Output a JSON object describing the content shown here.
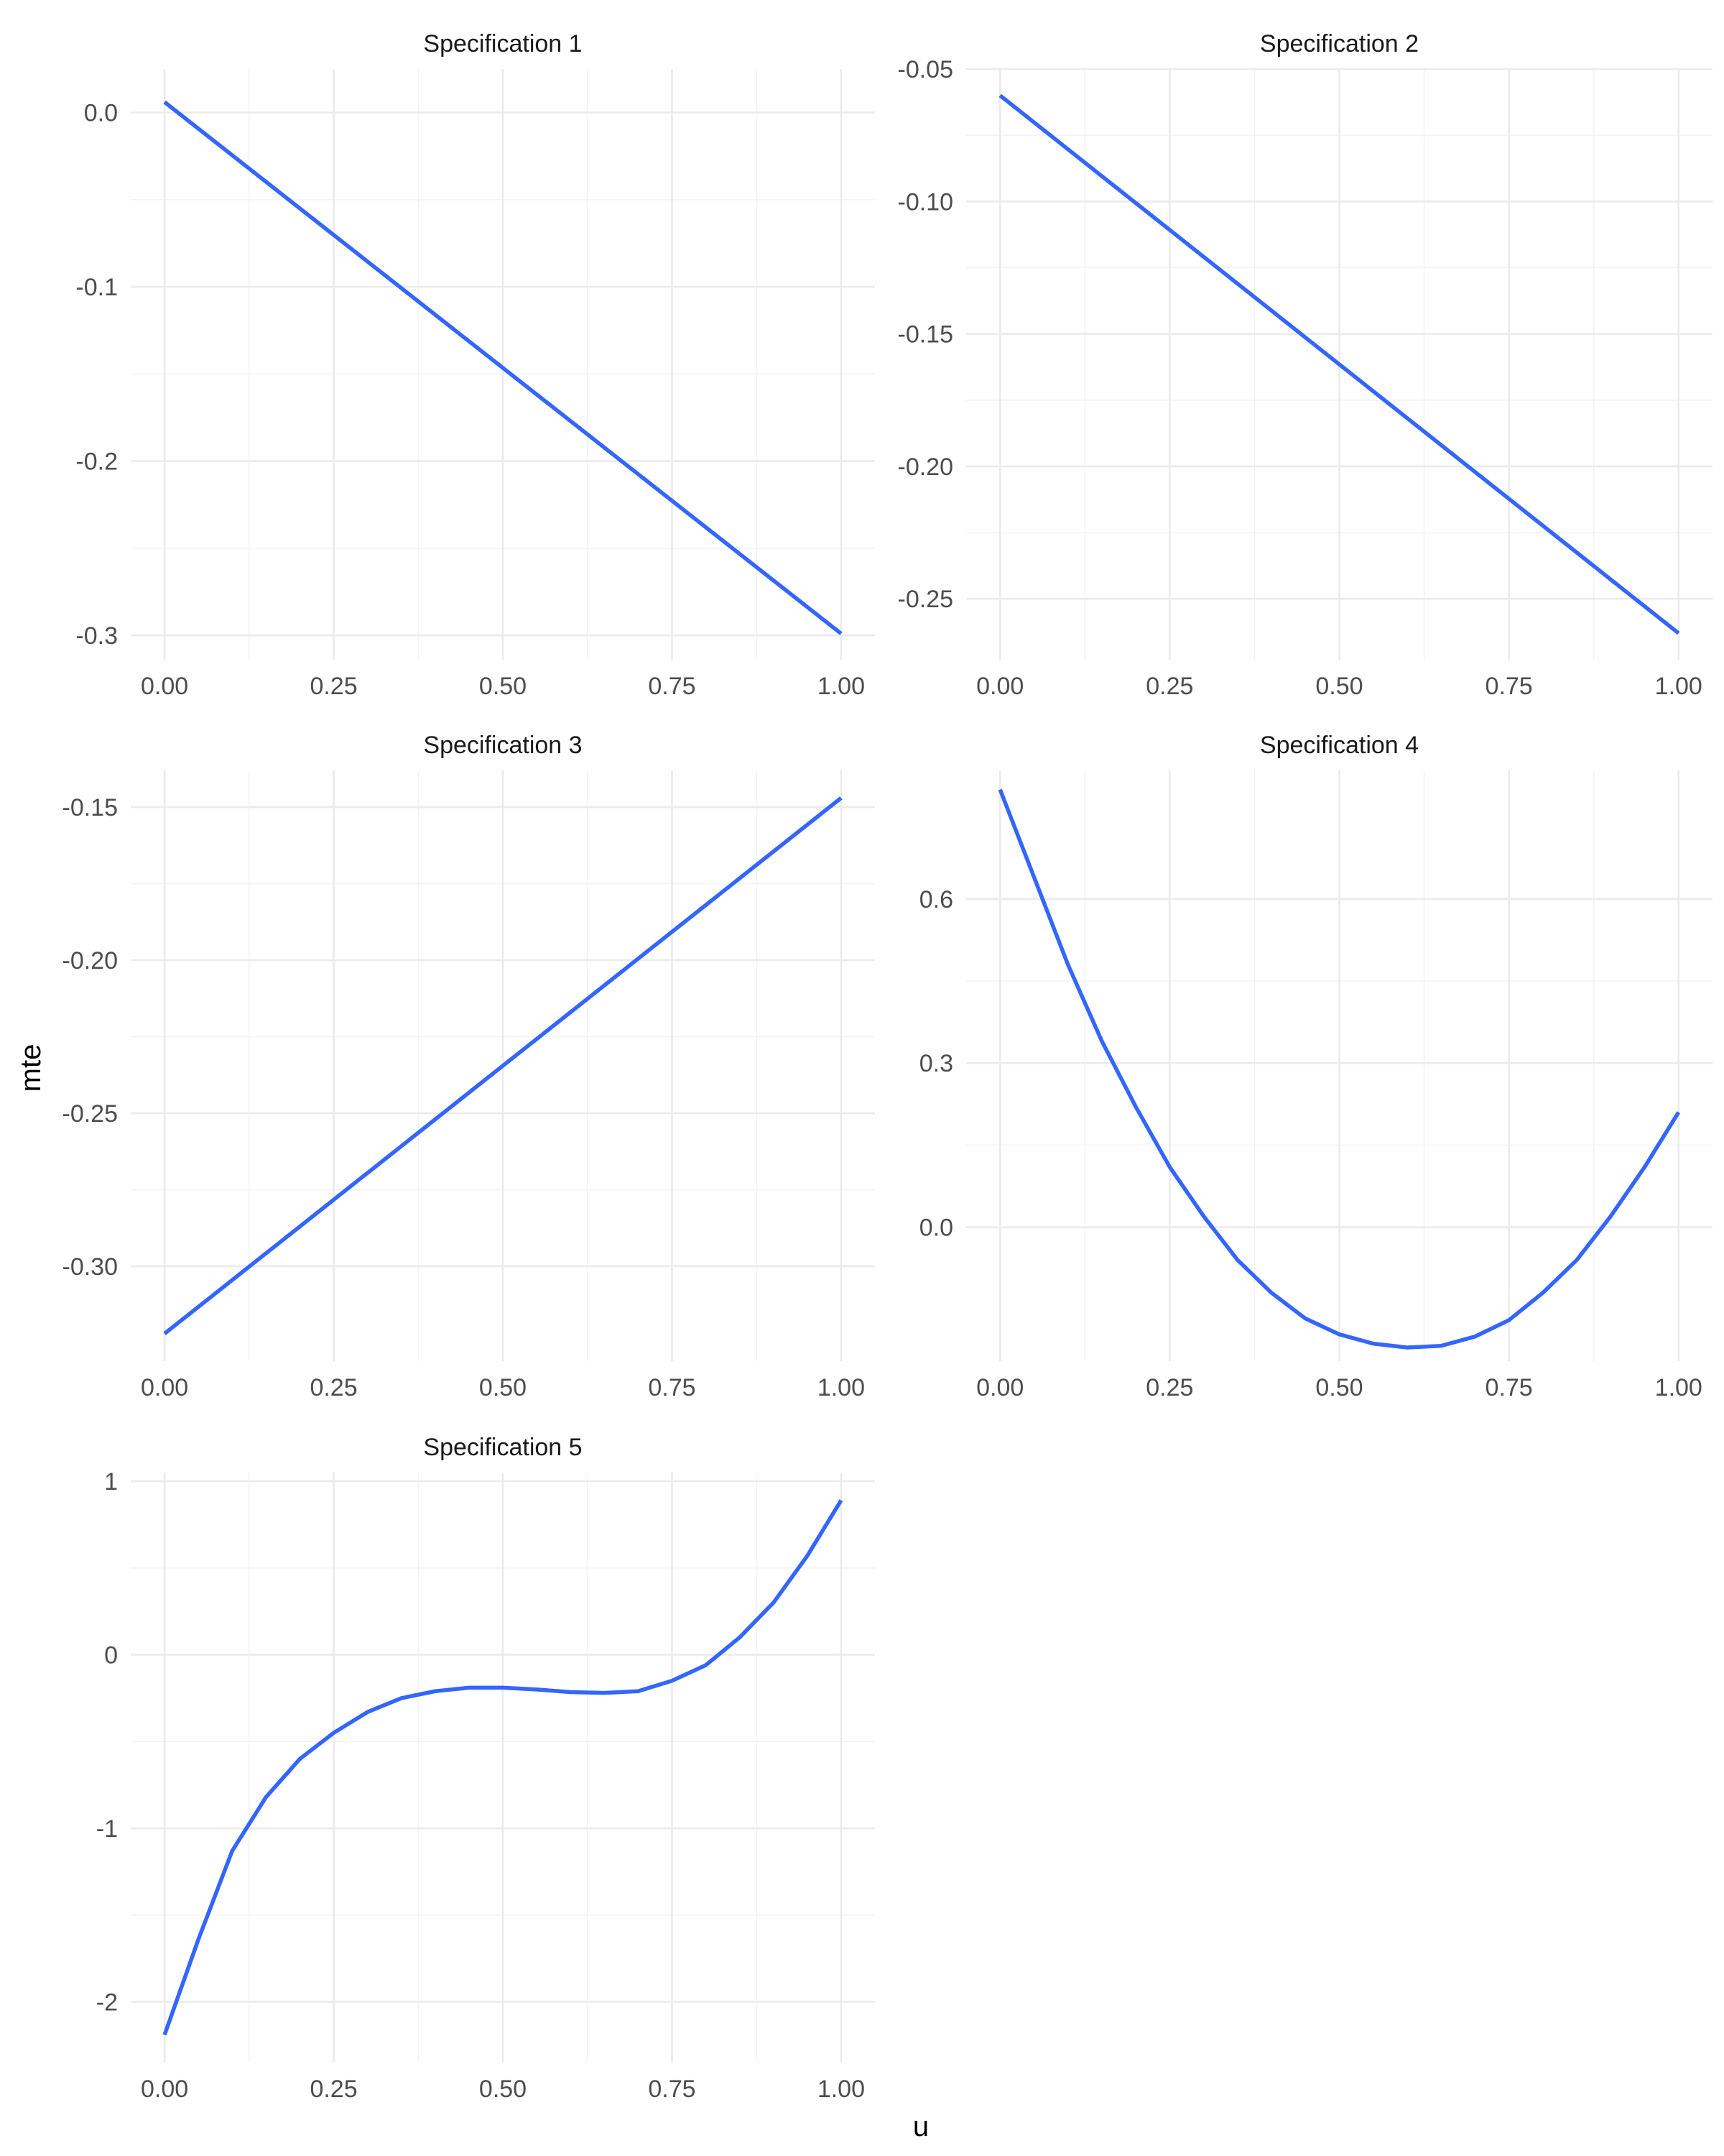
{
  "chart_data": {
    "type": "line",
    "xlabel": "u",
    "ylabel": "mte",
    "line_color": "#3366FF",
    "grid": true,
    "layout": "facet-wrap",
    "panels": [
      {
        "title": "Specification 1",
        "xlim": [
          -0.05,
          1.05
        ],
        "ylim": [
          -0.314,
          0.025
        ],
        "xticks": [
          0,
          0.25,
          0.5,
          0.75,
          1
        ],
        "xtick_labels": [
          "0.00",
          "0.25",
          "0.50",
          "0.75",
          "1.00"
        ],
        "yticks": [
          0,
          -0.1,
          -0.2,
          -0.3
        ],
        "ytick_labels": [
          "0.0",
          "-0.1",
          "-0.2",
          "-0.3"
        ],
        "series": [
          {
            "x": [
              0,
              1
            ],
            "y": [
              0.006,
              -0.299
            ]
          }
        ]
      },
      {
        "title": "Specification 2",
        "xlim": [
          -0.05,
          1.05
        ],
        "ylim": [
          -0.273,
          -0.05
        ],
        "xticks": [
          0,
          0.25,
          0.5,
          0.75,
          1
        ],
        "xtick_labels": [
          "0.00",
          "0.25",
          "0.50",
          "0.75",
          "1.00"
        ],
        "yticks": [
          -0.05,
          -0.1,
          -0.15,
          -0.2,
          -0.25
        ],
        "ytick_labels": [
          "-0.05",
          "-0.10",
          "-0.15",
          "-0.20",
          "-0.25"
        ],
        "series": [
          {
            "x": [
              0,
              1
            ],
            "y": [
              -0.06,
              -0.263
            ]
          }
        ]
      },
      {
        "title": "Specification 3",
        "xlim": [
          -0.05,
          1.05
        ],
        "ylim": [
          -0.331,
          -0.138
        ],
        "xticks": [
          0,
          0.25,
          0.5,
          0.75,
          1
        ],
        "xtick_labels": [
          "0.00",
          "0.25",
          "0.50",
          "0.75",
          "1.00"
        ],
        "yticks": [
          -0.15,
          -0.2,
          -0.25,
          -0.3
        ],
        "ytick_labels": [
          "-0.15",
          "-0.20",
          "-0.25",
          "-0.30"
        ],
        "series": [
          {
            "x": [
              0,
              1
            ],
            "y": [
              -0.322,
              -0.147
            ]
          }
        ]
      },
      {
        "title": "Specification 4",
        "xlim": [
          -0.05,
          1.05
        ],
        "ylim": [
          -0.245,
          0.835
        ],
        "xticks": [
          0,
          0.25,
          0.5,
          0.75,
          1
        ],
        "xtick_labels": [
          "0.00",
          "0.25",
          "0.50",
          "0.75",
          "1.00"
        ],
        "yticks": [
          0.6,
          0.3,
          0
        ],
        "ytick_labels": [
          "0.6",
          "0.3",
          "0.0"
        ],
        "series": [
          {
            "x": [
              0,
              0.05,
              0.1,
              0.15,
              0.2,
              0.25,
              0.3,
              0.35,
              0.4,
              0.45,
              0.5,
              0.55,
              0.6,
              0.65,
              0.7,
              0.75,
              0.8,
              0.85,
              0.9,
              0.95,
              1
            ],
            "y": [
              0.8,
              0.64,
              0.48,
              0.34,
              0.22,
              0.11,
              0.02,
              -0.06,
              -0.12,
              -0.167,
              -0.196,
              -0.213,
              -0.22,
              -0.217,
              -0.2,
              -0.17,
              -0.12,
              -0.06,
              0.02,
              0.11,
              0.21
            ]
          }
        ]
      },
      {
        "title": "Specification 5",
        "xlim": [
          -0.05,
          1.05
        ],
        "ylim": [
          -2.35,
          1.05
        ],
        "xticks": [
          0,
          0.25,
          0.5,
          0.75,
          1
        ],
        "xtick_labels": [
          "0.00",
          "0.25",
          "0.50",
          "0.75",
          "1.00"
        ],
        "yticks": [
          1,
          0,
          -1,
          -2
        ],
        "ytick_labels": [
          "1",
          "0",
          "-1",
          "-2"
        ],
        "series": [
          {
            "x": [
              0,
              0.05,
              0.1,
              0.15,
              0.2,
              0.25,
              0.3,
              0.35,
              0.4,
              0.45,
              0.5,
              0.55,
              0.6,
              0.65,
              0.7,
              0.75,
              0.8,
              0.85,
              0.9,
              0.95,
              1
            ],
            "y": [
              -2.19,
              -1.64,
              -1.13,
              -0.82,
              -0.6,
              -0.45,
              -0.33,
              -0.25,
              -0.21,
              -0.19,
              -0.19,
              -0.2,
              -0.215,
              -0.22,
              -0.21,
              -0.15,
              -0.06,
              0.1,
              0.3,
              0.57,
              0.89
            ]
          }
        ]
      }
    ]
  }
}
